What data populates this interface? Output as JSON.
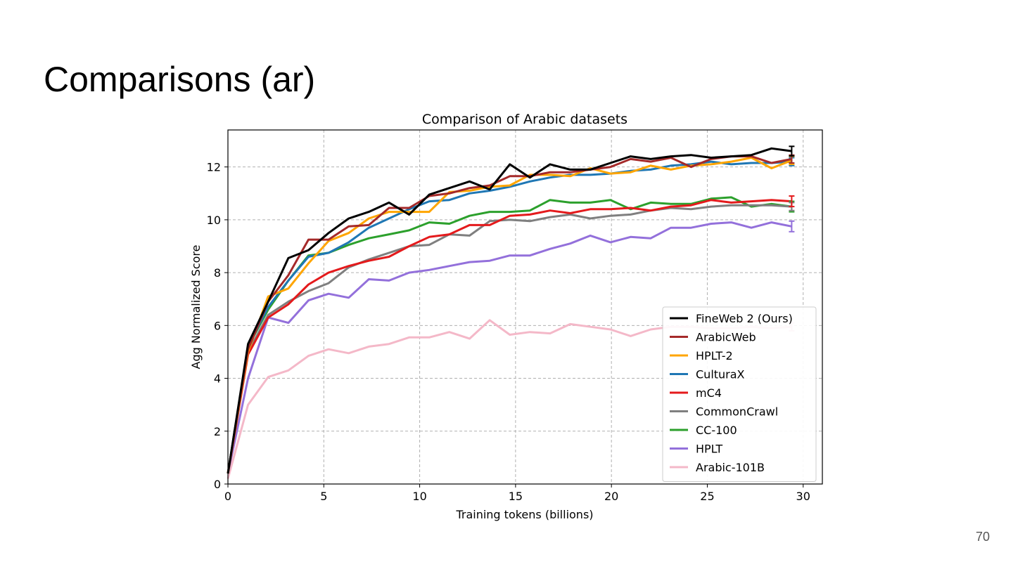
{
  "slide": {
    "title": "Comparisons (ar)",
    "page_number": "70"
  },
  "chart_data": {
    "type": "line",
    "title": "Comparison of Arabic datasets",
    "xlabel": "Training tokens (billions)",
    "ylabel": "Agg Normalized Score",
    "xlim": [
      0,
      31
    ],
    "ylim": [
      0,
      13.4
    ],
    "xticks": [
      0,
      5,
      10,
      15,
      20,
      25,
      30
    ],
    "yticks": [
      0,
      2,
      4,
      6,
      8,
      10,
      12
    ],
    "grid": true,
    "legend_position": "lower-right",
    "x": [
      0,
      1.05,
      2.1,
      3.15,
      4.2,
      5.25,
      6.3,
      7.35,
      8.4,
      9.45,
      10.5,
      11.55,
      12.6,
      13.65,
      14.7,
      15.75,
      16.8,
      17.85,
      18.9,
      19.95,
      21,
      22.05,
      23.1,
      24.15,
      25.2,
      26.25,
      27.3,
      28.35,
      29.4
    ],
    "series": [
      {
        "name": "FineWeb 2 (Ours)",
        "color": "#000000",
        "values": [
          0.4,
          5.3,
          6.9,
          8.55,
          8.85,
          9.5,
          10.05,
          10.3,
          10.65,
          10.2,
          10.95,
          11.2,
          11.45,
          11.15,
          12.1,
          11.6,
          12.1,
          11.9,
          11.9,
          12.15,
          12.4,
          12.3,
          12.4,
          12.45,
          12.35,
          12.4,
          12.45,
          12.7,
          12.6
        ],
        "err": 0.18
      },
      {
        "name": "ArabicWeb",
        "color": "#a52a2a",
        "values": [
          0.4,
          5.1,
          6.9,
          7.9,
          9.25,
          9.25,
          9.75,
          9.8,
          10.45,
          10.45,
          10.9,
          11.0,
          11.2,
          11.3,
          11.65,
          11.65,
          11.8,
          11.8,
          11.9,
          12.0,
          12.3,
          12.2,
          12.35,
          12.0,
          12.3,
          12.4,
          12.4,
          12.15,
          12.3
        ],
        "err": 0.15
      },
      {
        "name": "HPLT-2",
        "color": "#ffa500",
        "values": [
          0.4,
          5.0,
          7.1,
          7.4,
          8.35,
          9.2,
          9.5,
          10.05,
          10.3,
          10.3,
          10.3,
          11.05,
          11.1,
          11.25,
          11.3,
          11.7,
          11.7,
          11.65,
          11.95,
          11.75,
          11.8,
          12.05,
          11.9,
          12.05,
          12.1,
          12.2,
          12.35,
          11.95,
          12.25
        ],
        "err": 0.15
      },
      {
        "name": "CulturaX",
        "color": "#1f77b4",
        "values": [
          0.4,
          5.2,
          6.7,
          7.7,
          8.6,
          8.75,
          9.15,
          9.7,
          10.05,
          10.4,
          10.7,
          10.75,
          11.0,
          11.1,
          11.25,
          11.45,
          11.6,
          11.7,
          11.7,
          11.75,
          11.85,
          11.9,
          12.05,
          12.1,
          12.2,
          12.1,
          12.15,
          12.15,
          12.2
        ],
        "err": 0.15
      },
      {
        "name": "mC4",
        "color": "#e41a1c",
        "values": [
          0.4,
          4.9,
          6.3,
          6.8,
          7.55,
          8.0,
          8.25,
          8.45,
          8.6,
          9.0,
          9.35,
          9.45,
          9.8,
          9.8,
          10.15,
          10.2,
          10.35,
          10.25,
          10.4,
          10.4,
          10.45,
          10.35,
          10.5,
          10.55,
          10.75,
          10.65,
          10.7,
          10.75,
          10.7
        ],
        "err": 0.2
      },
      {
        "name": "CommonCrawl",
        "color": "#7f7f7f",
        "values": [
          0.4,
          5.0,
          6.4,
          6.9,
          7.3,
          7.6,
          8.2,
          8.5,
          8.75,
          9.0,
          9.05,
          9.45,
          9.4,
          9.95,
          10.0,
          9.95,
          10.1,
          10.2,
          10.05,
          10.15,
          10.2,
          10.35,
          10.45,
          10.4,
          10.5,
          10.55,
          10.55,
          10.55,
          10.5
        ],
        "err": 0.15
      },
      {
        "name": "CC-100",
        "color": "#2ca02c",
        "values": [
          0.4,
          5.2,
          6.6,
          7.7,
          8.65,
          8.75,
          9.05,
          9.3,
          9.45,
          9.6,
          9.9,
          9.85,
          10.15,
          10.3,
          10.3,
          10.35,
          10.75,
          10.65,
          10.65,
          10.75,
          10.4,
          10.65,
          10.6,
          10.6,
          10.8,
          10.85,
          10.5,
          10.6,
          10.5
        ],
        "err": 0.2
      },
      {
        "name": "HPLT",
        "color": "#9370db",
        "values": [
          0.4,
          4.0,
          6.3,
          6.1,
          6.95,
          7.2,
          7.05,
          7.75,
          7.7,
          8.0,
          8.1,
          8.25,
          8.4,
          8.45,
          8.65,
          8.65,
          8.9,
          9.1,
          9.4,
          9.15,
          9.35,
          9.3,
          9.7,
          9.7,
          9.85,
          9.9,
          9.7,
          9.9,
          9.75
        ],
        "err": 0.2
      },
      {
        "name": "Arabic-101B",
        "color": "#f4b8c8",
        "values": [
          0.2,
          3.0,
          4.05,
          4.3,
          4.85,
          5.1,
          4.95,
          5.2,
          5.3,
          5.55,
          5.55,
          5.75,
          5.5,
          6.2,
          5.65,
          5.75,
          5.7,
          6.05,
          5.95,
          5.85,
          5.6,
          5.85,
          5.95,
          5.95,
          5.9,
          5.9,
          5.95,
          5.9,
          5.95
        ],
        "err": 0.15
      }
    ]
  }
}
